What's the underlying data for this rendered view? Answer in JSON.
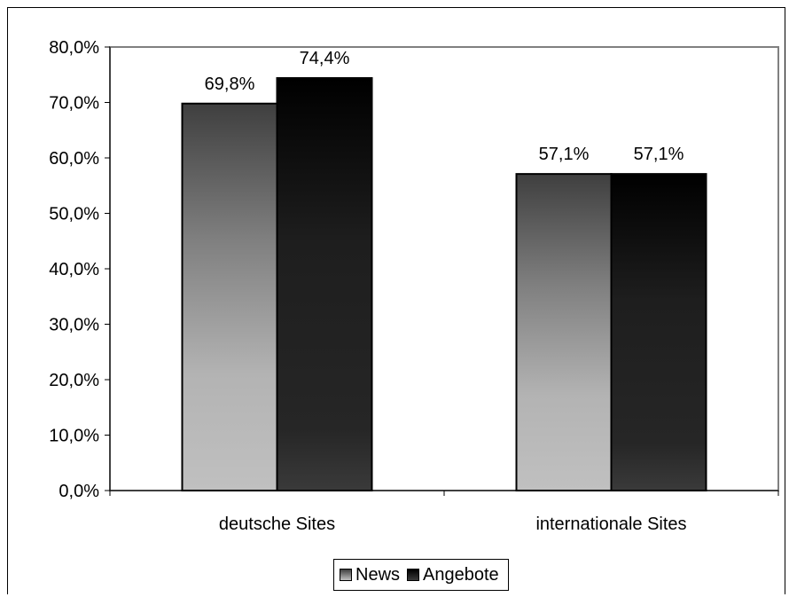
{
  "chart_data": {
    "type": "bar",
    "categories": [
      "deutsche Sites",
      "internationale Sites"
    ],
    "series": [
      {
        "name": "News",
        "values": [
          69.8,
          57.1
        ],
        "labels": [
          "69,8%",
          "57,1%"
        ]
      },
      {
        "name": "Angebote",
        "values": [
          74.4,
          57.1
        ],
        "labels": [
          "74,4%",
          "57,1%"
        ]
      }
    ],
    "ylim": [
      0,
      80
    ],
    "yticks": [
      "0,0%",
      "10,0%",
      "20,0%",
      "30,0%",
      "40,0%",
      "50,0%",
      "60,0%",
      "70,0%",
      "80,0%"
    ],
    "legend_position": "bottom",
    "grid": false,
    "colors": {
      "News_dark": "#4a4a4a",
      "News_light": "#c0c0c0",
      "Angebote_dark": "#000000",
      "Angebote_light": "#3c3c3c",
      "plot_border": "#808080"
    }
  }
}
